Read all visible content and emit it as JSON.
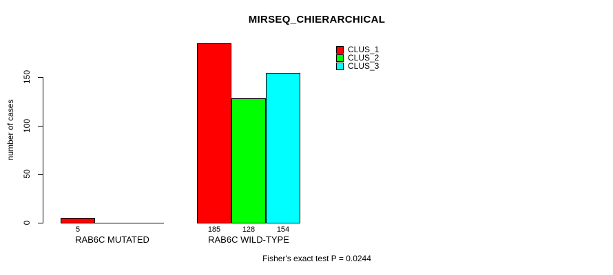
{
  "chart_data": {
    "type": "bar",
    "title": "MIRSEQ_CHIERARCHICAL",
    "ylabel": "number of cases",
    "ylim": [
      0,
      150
    ],
    "yticks": [
      0,
      50,
      100,
      150
    ],
    "grid": false,
    "legend_position": "top-right",
    "categories": [
      "RAB6C MUTATED",
      "RAB6C WILD-TYPE"
    ],
    "series": [
      {
        "name": "CLUS_1",
        "color": "#FF0000",
        "values": [
          5,
          185
        ]
      },
      {
        "name": "CLUS_2",
        "color": "#00FF00",
        "values": [
          0,
          128
        ]
      },
      {
        "name": "CLUS_3",
        "color": "#00FFFF",
        "values": [
          0,
          154
        ]
      }
    ],
    "bar_value_labels": [
      [
        "5",
        "",
        ""
      ],
      [
        "185",
        "128",
        "154"
      ]
    ],
    "annotation": "Fisher's exact test P = 0.0244"
  }
}
